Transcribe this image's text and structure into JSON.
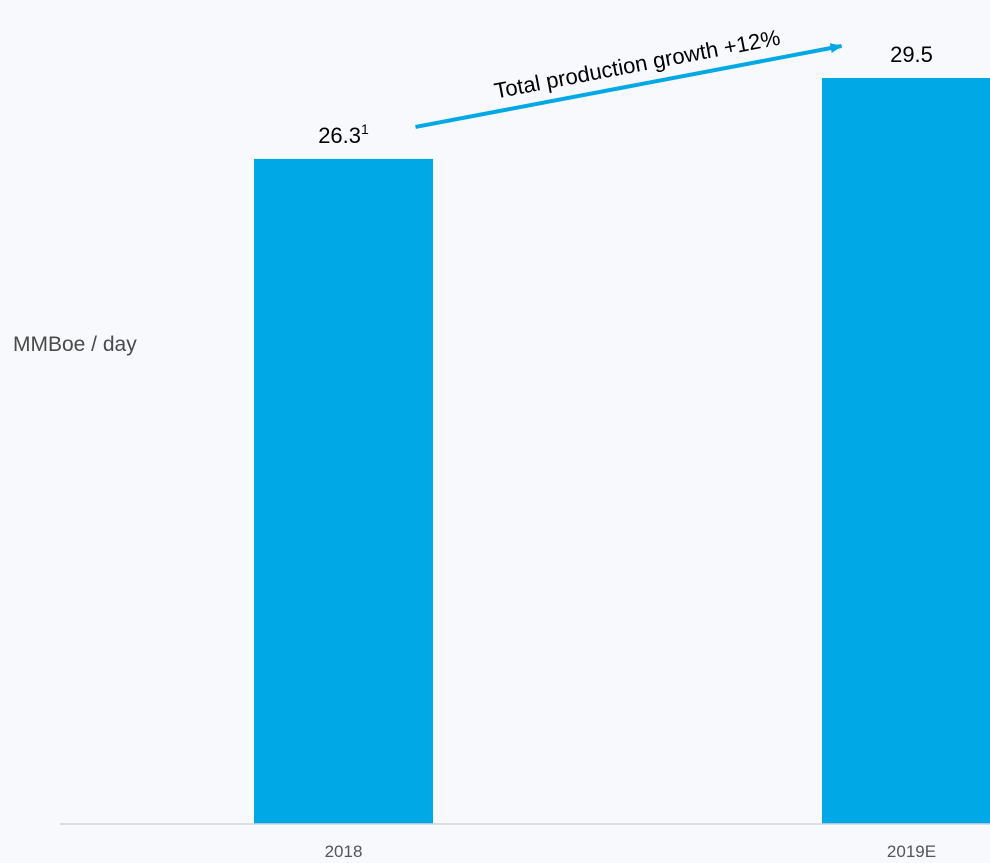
{
  "chart_data": {
    "type": "bar",
    "categories": [
      "2018",
      "2019E"
    ],
    "values": [
      26.3,
      29.5
    ],
    "data_labels": [
      "26.3",
      "29.5"
    ],
    "data_label_superscripts": [
      "1",
      ""
    ],
    "xlabel": "",
    "ylabel": "MMBoe / day",
    "ylim": [
      0,
      29.5
    ],
    "grid": false,
    "legend": "none",
    "annotation": {
      "text": "Total production growth +12%",
      "from_category": "2018",
      "to_category": "2019E"
    },
    "colors": {
      "bar": "#00a9e6",
      "arrow": "#00a9e6",
      "axis": "#d4d4d4",
      "label_text": "#000000",
      "tick_text": "#555555",
      "background": "#f7f9fc"
    }
  }
}
